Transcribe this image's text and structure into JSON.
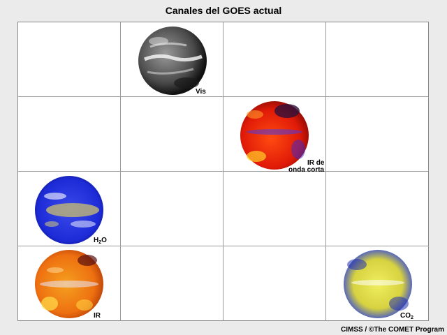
{
  "title": "Canales del GOES actual",
  "credit": "CIMSS / ©The COMET Program",
  "channels": [
    {
      "name": "Vis",
      "icon": "visible-globe-icon"
    },
    {
      "name_line1": "IR de",
      "name_line2": "onda corta",
      "icon": "shortwave-ir-globe-icon"
    },
    {
      "name_main": "H",
      "name_sub": "2",
      "name_tail": "O",
      "icon": "water-vapor-globe-icon"
    },
    {
      "name": "IR",
      "icon": "ir-globe-icon"
    },
    {
      "name_main": "CO",
      "name_sub": "2",
      "icon": "co2-globe-icon"
    }
  ],
  "colors": {
    "visible": "#6e6e6e",
    "shortwave_ir": "#e32a10",
    "water_vapor": "#1f2fe0",
    "ir": "#f07a12",
    "co2": "#e6e24a"
  }
}
